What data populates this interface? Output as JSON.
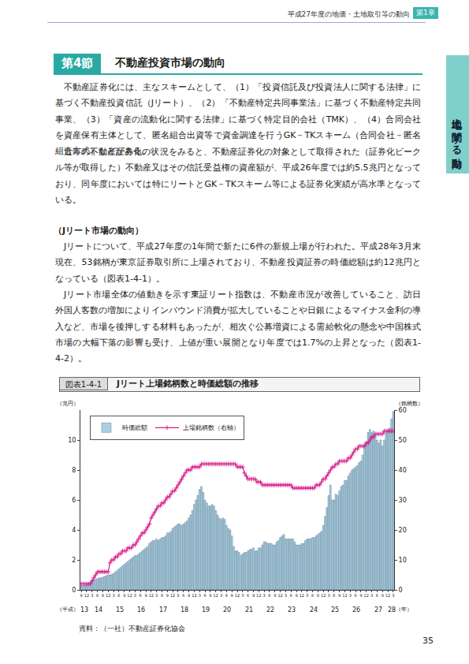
{
  "header": {
    "text": "平成27年度の地価・土地取引等の動向",
    "chapter": "第1章",
    "side_tab": "土地に関する動向"
  },
  "section": {
    "number": "第4節",
    "title": "不動産投資市場の動向"
  },
  "paragraphs_1": [
    "不動産証券化には、主なスキームとして、（1）「投資信託及び投資法人に関する法律」に基づく不動産投資信託（Jリート）、（2）「不動産特定共同事業法」に基づく不動産特定共同事業、（3）「資産の流動化に関する法律」に基づく特定目的会社（TMK）、（4）合同会社を資産保有主体として、匿名組合出資等で資金調達を行うGK－TKスキーム（合同会社－匿名組合方式）などがある。",
    "近年の不動産証券化の状況をみると、不動産証券化の対象として取得された（証券化ビークル等が取得した）不動産又はその信託受益権の資産額が、平成26年度では約5.5兆円となっており、同年度においては特にリートとGK－TKスキーム等による証券化実績が高水準となっている。"
  ],
  "subheading": "（Jリート市場の動向）",
  "paragraphs_2": [
    "Jリートについて、平成27年度の1年間で新たに6件の新規上場が行われた。平成28年3月末現在、53銘柄が東京証券取引所に上場されており、不動産投資証券の時価総額は約12兆円となっている（図表1-4-1）。",
    "Jリート市場全体の値動きを示す東証リート指数は、不動産市況が改善していること、訪日外国人客数の増加によりインバウンド消費が拡大していることや日銀によるマイナス金利の導入など、市場を後押しする材料もあったが、相次ぐ公募増資による需給軟化の懸念や中国株式市場の大幅下落の影響も受け、上値が重い展開となり年度では1.7%の上昇となった（図表1-4-2）。"
  ],
  "figure": {
    "number": "図表1-4-1",
    "title": "Jリート上場銘柄数と時価総額の推移",
    "source": "資料：（一社）不動産証券化協会"
  },
  "page_number": "35",
  "chart_data": {
    "type": "bar",
    "categories": [
      "9",
      null,
      null,
      "12",
      null,
      null,
      "3",
      null,
      null,
      "6",
      null,
      null,
      "9",
      null,
      null,
      "12",
      null,
      null,
      "3",
      null,
      null,
      "6",
      null,
      null,
      "9",
      null,
      null,
      "12",
      null,
      null,
      "3",
      null,
      null,
      "6",
      null,
      null,
      "9",
      null,
      null,
      "12",
      null,
      null,
      "3",
      null,
      null,
      "6",
      null,
      null,
      "9",
      null,
      null,
      "12",
      null,
      null,
      "3",
      null,
      null,
      "6",
      null,
      null,
      "9",
      null,
      null,
      "12",
      null,
      null,
      "3",
      null,
      null,
      "6",
      null,
      null,
      "9",
      null,
      null,
      "12",
      null,
      null,
      "3",
      null,
      null,
      "6",
      null,
      null,
      "9",
      null,
      null,
      "12",
      null,
      null,
      "3",
      null,
      null,
      "6",
      null,
      null,
      "9",
      null,
      null,
      "12",
      null,
      null,
      "3",
      null,
      null,
      "6",
      null,
      null,
      "9",
      null,
      null,
      "12",
      null,
      null,
      "3",
      null,
      null,
      "6",
      null,
      null,
      "9",
      null,
      null,
      "12",
      null,
      null,
      "3",
      null,
      null,
      "6",
      null,
      null,
      "9",
      null,
      null,
      "12",
      null,
      null,
      "3",
      null,
      null,
      "6",
      null,
      null,
      "9",
      null,
      null,
      "12",
      null,
      null,
      "3",
      null,
      null,
      "6",
      null,
      null,
      "9",
      null,
      null,
      "12",
      null,
      null,
      "3",
      null,
      null,
      "6",
      null,
      null,
      "9",
      null,
      null,
      "12",
      null,
      null,
      "3"
    ],
    "year_groups": [
      {
        "label": "13",
        "months": 4
      },
      {
        "label": "14",
        "months": 12
      },
      {
        "label": "15",
        "months": 12
      },
      {
        "label": "16",
        "months": 12
      },
      {
        "label": "17",
        "months": 12
      },
      {
        "label": "18",
        "months": 12
      },
      {
        "label": "19",
        "months": 12
      },
      {
        "label": "20",
        "months": 12
      },
      {
        "label": "21",
        "months": 12
      },
      {
        "label": "22",
        "months": 12
      },
      {
        "label": "23",
        "months": 12
      },
      {
        "label": "24",
        "months": 12
      },
      {
        "label": "25",
        "months": 12
      },
      {
        "label": "26",
        "months": 12
      },
      {
        "label": "27",
        "months": 12
      },
      {
        "label": "28",
        "months": 3
      }
    ],
    "year_prefix": "（平成）",
    "year_suffix": "（年）",
    "series": [
      {
        "name": "時価総額",
        "type": "bar",
        "color": "#a9cfe2",
        "values": [
          0.26,
          0.3,
          0.3,
          0.35,
          0.45,
          0.5,
          0.6,
          0.65,
          0.7,
          0.75,
          0.8,
          0.8,
          0.85,
          0.9,
          0.95,
          1.0,
          1.0,
          1.05,
          1.1,
          1.2,
          1.3,
          1.4,
          1.5,
          1.6,
          1.7,
          1.8,
          1.9,
          2.0,
          2.1,
          2.2,
          2.3,
          2.3,
          2.4,
          2.5,
          2.6,
          2.7,
          2.8,
          2.9,
          3.1,
          3.2,
          3.3,
          3.3,
          3.4,
          3.3,
          3.4,
          3.5,
          3.5,
          3.6,
          3.8,
          3.8,
          3.9,
          4.1,
          4.2,
          4.3,
          4.4,
          4.4,
          4.3,
          4.4,
          4.5,
          4.6,
          4.8,
          5.0,
          5.3,
          5.7,
          6.0,
          6.3,
          6.7,
          6.9,
          6.5,
          6.0,
          5.8,
          5.6,
          5.6,
          5.7,
          5.6,
          5.3,
          5.0,
          4.8,
          4.7,
          4.8,
          4.7,
          4.3,
          4.1,
          4.0,
          3.6,
          2.9,
          2.6,
          2.6,
          2.5,
          2.3,
          2.4,
          2.5,
          2.5,
          2.6,
          2.7,
          2.7,
          2.8,
          2.6,
          2.6,
          2.8,
          2.8,
          3.0,
          3.2,
          3.2,
          3.1,
          3.1,
          3.1,
          3.0,
          3.0,
          3.2,
          3.3,
          3.5,
          3.6,
          3.7,
          3.4,
          3.4,
          3.4,
          3.4,
          3.4,
          3.2,
          3.0,
          3.0,
          3.0,
          3.1,
          3.1,
          3.3,
          3.4,
          3.4,
          3.4,
          3.5,
          3.5,
          3.6,
          3.7,
          3.8,
          3.9,
          4.3,
          4.9,
          5.5,
          6.3,
          7.0,
          6.0,
          6.0,
          6.4,
          6.3,
          6.6,
          6.9,
          7.0,
          7.3,
          7.3,
          7.6,
          7.8,
          8.0,
          8.1,
          8.2,
          8.3,
          8.5,
          8.6,
          9.0,
          9.7,
          9.9,
          10.5,
          10.7,
          10.5,
          10.6,
          10.3,
          10.0,
          9.8,
          10.0,
          9.6,
          10.0,
          10.5,
          10.7,
          10.8,
          11.4,
          11.9
        ]
      },
      {
        "name": "上場銘柄数（右軸）",
        "type": "line",
        "axis": "y2",
        "color": "#d81e8c",
        "marker": "plus",
        "values": [
          2,
          2,
          2,
          2,
          2,
          2,
          3,
          4,
          5,
          6,
          6,
          6,
          6,
          6,
          6,
          6,
          9,
          10,
          10,
          11,
          11,
          12,
          12,
          13,
          13,
          13,
          14,
          14,
          14,
          15,
          15,
          16,
          17,
          18,
          19,
          19,
          20,
          21,
          22,
          24,
          25,
          26,
          27,
          28,
          28,
          29,
          29,
          30,
          31,
          31,
          32,
          33,
          33,
          34,
          35,
          36,
          37,
          38,
          39,
          40,
          40,
          40,
          41,
          41,
          41,
          41,
          41,
          42,
          42,
          42,
          42,
          42,
          42,
          42,
          42,
          42,
          42,
          42,
          42,
          42,
          42,
          42,
          42,
          42,
          42,
          42,
          42,
          41,
          41,
          41,
          41,
          39,
          38,
          37,
          37,
          37,
          37,
          37,
          36,
          36,
          36,
          35,
          35,
          35,
          35,
          35,
          35,
          35,
          35,
          35,
          35,
          35,
          35,
          35,
          35,
          35,
          35,
          35,
          34,
          34,
          34,
          34,
          34,
          34,
          34,
          34,
          34,
          34,
          34,
          34,
          34,
          35,
          35,
          35,
          36,
          37,
          37,
          38,
          39,
          40,
          41,
          41,
          42,
          42,
          43,
          43,
          43,
          43,
          43,
          44,
          44,
          45,
          46,
          47,
          47,
          48,
          48,
          48,
          48,
          49,
          49,
          50,
          51,
          51,
          52,
          52,
          52,
          52,
          52,
          53,
          53,
          53,
          53,
          53,
          53
        ]
      }
    ],
    "ylabel": "（兆円）",
    "y2label": "（銘柄数）",
    "ylim": [
      0,
      12
    ],
    "yticks": [
      0,
      2,
      4,
      6,
      8,
      10
    ],
    "y2lim": [
      0,
      60
    ],
    "y2ticks": [
      0,
      10,
      20,
      30,
      40,
      50,
      60
    ],
    "legend": "upper left",
    "grid": false
  }
}
